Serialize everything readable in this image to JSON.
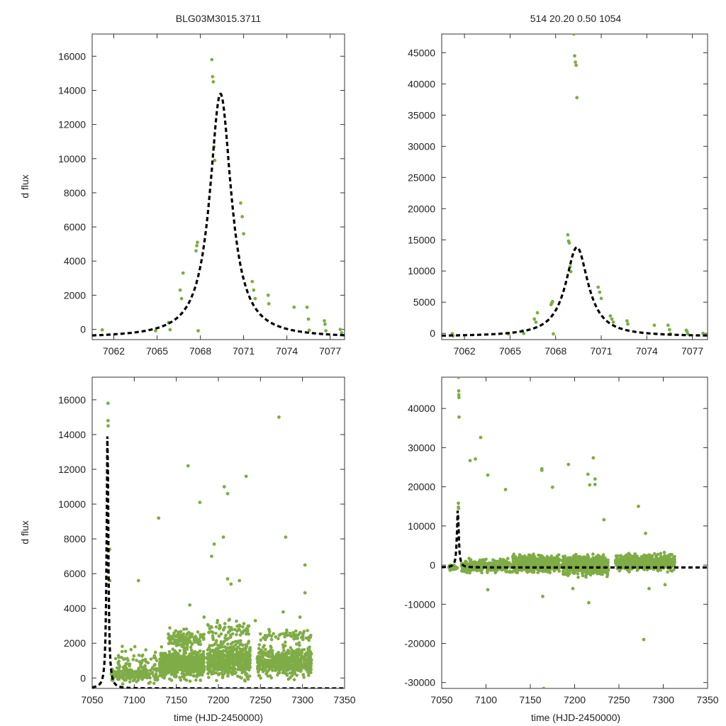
{
  "title_left": "BLG03M3015.3711",
  "title_right": "514  20.20  0.50  1054",
  "colors": {
    "data": "#7fac46",
    "model": "#000000",
    "axis": "#333333"
  },
  "chart_data": [
    {
      "type": "scatter",
      "name": "top-left",
      "title": "BLG03M3015.3711",
      "xlabel": "",
      "ylabel": "d flux",
      "xlim": [
        7060.5,
        7078
      ],
      "ylim": [
        -600,
        17300
      ],
      "xticks": [
        7062,
        7065,
        7068,
        7071,
        7074,
        7077
      ],
      "yticks": [
        0,
        2000,
        4000,
        6000,
        8000,
        10000,
        12000,
        14000,
        16000
      ],
      "points": [
        [
          7061.2,
          -30
        ],
        [
          7064.9,
          -80
        ],
        [
          7065.8,
          400
        ],
        [
          7065.9,
          -20
        ],
        [
          7066.6,
          2300
        ],
        [
          7066.7,
          1800
        ],
        [
          7066.8,
          3300
        ],
        [
          7067.7,
          4600
        ],
        [
          7067.75,
          4900
        ],
        [
          7067.8,
          5100
        ],
        [
          7067.85,
          -80
        ],
        [
          7068.8,
          15800
        ],
        [
          7068.85,
          14800
        ],
        [
          7068.9,
          14500
        ],
        [
          7068.95,
          10700
        ],
        [
          7069.0,
          9900
        ],
        [
          7070.8,
          7400
        ],
        [
          7070.9,
          6600
        ],
        [
          7071.0,
          5600
        ],
        [
          7071.6,
          2800
        ],
        [
          7071.7,
          2300
        ],
        [
          7071.8,
          1800
        ],
        [
          7072.7,
          2000
        ],
        [
          7072.75,
          1500
        ],
        [
          7074.5,
          1300
        ],
        [
          7075.4,
          1300
        ],
        [
          7075.5,
          600
        ],
        [
          7075.55,
          -50
        ],
        [
          7076.6,
          500
        ],
        [
          7076.65,
          300
        ],
        [
          7076.7,
          -80
        ],
        [
          7077.7,
          0
        ],
        [
          7077.8,
          -200
        ]
      ],
      "model": {
        "t0": 7069.4,
        "amplitude": 13800,
        "tE": 0.9,
        "baseline": -500
      }
    },
    {
      "type": "scatter",
      "name": "top-right",
      "title": "514  20.20  0.50  1054",
      "xlabel": "",
      "ylabel": "",
      "xlim": [
        7060.5,
        7078
      ],
      "ylim": [
        -1000,
        48000
      ],
      "xticks": [
        7062,
        7065,
        7068,
        7071,
        7074,
        7077
      ],
      "yticks": [
        0,
        5000,
        10000,
        15000,
        20000,
        25000,
        30000,
        35000,
        40000,
        45000
      ],
      "points": [
        [
          7061.2,
          -50
        ],
        [
          7061.25,
          -400
        ],
        [
          7064.9,
          -80
        ],
        [
          7065.8,
          400
        ],
        [
          7065.9,
          -20
        ],
        [
          7066.6,
          2300
        ],
        [
          7066.7,
          1800
        ],
        [
          7066.8,
          3300
        ],
        [
          7067.7,
          4600
        ],
        [
          7067.75,
          4900
        ],
        [
          7067.8,
          5100
        ],
        [
          7067.85,
          -80
        ],
        [
          7068.8,
          15800
        ],
        [
          7068.85,
          14800
        ],
        [
          7068.9,
          14500
        ],
        [
          7068.95,
          10700
        ],
        [
          7069.0,
          9900
        ],
        [
          7069.2,
          48000
        ],
        [
          7069.25,
          44500
        ],
        [
          7069.3,
          43500
        ],
        [
          7069.35,
          43000
        ],
        [
          7069.4,
          37800
        ],
        [
          7070.8,
          7400
        ],
        [
          7070.9,
          6600
        ],
        [
          7071.0,
          5600
        ],
        [
          7071.6,
          2800
        ],
        [
          7071.7,
          2300
        ],
        [
          7071.8,
          1800
        ],
        [
          7072.7,
          2000
        ],
        [
          7072.75,
          1500
        ],
        [
          7074.5,
          1300
        ],
        [
          7075.4,
          1300
        ],
        [
          7075.5,
          600
        ],
        [
          7075.55,
          -50
        ],
        [
          7076.6,
          500
        ],
        [
          7076.65,
          300
        ],
        [
          7076.7,
          -80
        ],
        [
          7077.7,
          0
        ],
        [
          7077.8,
          -200
        ]
      ],
      "model": {
        "t0": 7069.4,
        "amplitude": 13800,
        "tE": 0.9,
        "baseline": -500
      }
    },
    {
      "type": "scatter",
      "name": "bottom-left",
      "title": "",
      "xlabel": "time (HJD-2450000)",
      "ylabel": "d flux",
      "xlim": [
        7050,
        7350
      ],
      "ylim": [
        -600,
        17300
      ],
      "xticks": [
        7050,
        7100,
        7150,
        7200,
        7250,
        7300,
        7350
      ],
      "yticks": [
        0,
        2000,
        4000,
        6000,
        8000,
        10000,
        12000,
        14000,
        16000
      ],
      "points": [
        [
          7068.8,
          15800
        ],
        [
          7068.9,
          14800
        ],
        [
          7069.0,
          14500
        ],
        [
          7070.8,
          7400
        ],
        [
          7071.0,
          5600
        ],
        [
          7105,
          5600
        ],
        [
          7129,
          9200
        ],
        [
          7164,
          12200
        ],
        [
          7178,
          10100
        ],
        [
          7192,
          7000
        ],
        [
          7195,
          7700
        ],
        [
          7206,
          8100
        ],
        [
          7207,
          11000
        ],
        [
          7211,
          10600
        ],
        [
          7211,
          5700
        ],
        [
          7215,
          5400
        ],
        [
          7225,
          5600
        ],
        [
          7233,
          11600
        ],
        [
          7272,
          15000
        ],
        [
          7280,
          8100
        ],
        [
          7303,
          6500
        ],
        [
          7303,
          4900
        ],
        [
          7166,
          4200
        ],
        [
          7183,
          3500
        ],
        [
          7277,
          3800
        ],
        [
          7297,
          3500
        ],
        [
          7244,
          3300
        ]
      ],
      "clusters": [
        {
          "x": [
            7072,
            7128
          ],
          "y": [
            -400,
            800
          ],
          "n": 190,
          "seed": 1
        },
        {
          "x": [
            7078,
            7128
          ],
          "y": [
            -200,
            2000
          ],
          "n": 70,
          "seed": 2
        },
        {
          "x": [
            7130,
            7183
          ],
          "y": [
            -300,
            1900
          ],
          "n": 650,
          "seed": 3
        },
        {
          "x": [
            7140,
            7183
          ],
          "y": [
            1500,
            3000
          ],
          "n": 120,
          "seed": 4
        },
        {
          "x": [
            7186,
            7238
          ],
          "y": [
            -300,
            2400
          ],
          "n": 520,
          "seed": 5
        },
        {
          "x": [
            7186,
            7238
          ],
          "y": [
            2000,
            3600
          ],
          "n": 70,
          "seed": 6
        },
        {
          "x": [
            7246,
            7311
          ],
          "y": [
            -200,
            2100
          ],
          "n": 520,
          "seed": 7
        },
        {
          "x": [
            7250,
            7310
          ],
          "y": [
            1800,
            3000
          ],
          "n": 60,
          "seed": 8
        }
      ],
      "model": {
        "t0": 7068.2,
        "amplitude": 14300,
        "tE": 1.2,
        "baseline": -600
      }
    },
    {
      "type": "scatter",
      "name": "bottom-right",
      "title": "",
      "xlabel": "time (HJD-2450000)",
      "ylabel": "",
      "xlim": [
        7050,
        7350
      ],
      "ylim": [
        -31500,
        48000
      ],
      "xticks": [
        7050,
        7100,
        7150,
        7200,
        7250,
        7300,
        7350
      ],
      "yticks": [
        -30000,
        -20000,
        -10000,
        0,
        10000,
        20000,
        30000,
        40000
      ],
      "points": [
        [
          7069.0,
          48000
        ],
        [
          7069.2,
          44500
        ],
        [
          7069.3,
          43500
        ],
        [
          7069.5,
          42800
        ],
        [
          7069.6,
          37800
        ],
        [
          7068.8,
          15800
        ],
        [
          7068.9,
          14800
        ],
        [
          7069.0,
          14500
        ],
        [
          7082,
          26700
        ],
        [
          7088,
          27100
        ],
        [
          7094,
          32600
        ],
        [
          7102,
          23000
        ],
        [
          7122,
          19300
        ],
        [
          7163,
          24600
        ],
        [
          7163,
          24200
        ],
        [
          7175,
          19900
        ],
        [
          7193,
          25700
        ],
        [
          7215,
          23200
        ],
        [
          7217,
          20500
        ],
        [
          7221,
          27400
        ],
        [
          7223,
          22000
        ],
        [
          7223,
          20600
        ],
        [
          7233,
          11600
        ],
        [
          7272,
          15000
        ],
        [
          7280,
          8100
        ],
        [
          7278,
          -19000
        ],
        [
          7165,
          -31500
        ],
        [
          7216,
          -9600
        ],
        [
          7102,
          -6300
        ],
        [
          7164,
          -8000
        ],
        [
          7198,
          -6000
        ],
        [
          7302,
          -5000
        ],
        [
          7284,
          -6000
        ]
      ],
      "clusters": [
        {
          "x": [
            7058,
            7068
          ],
          "y": [
            -1500,
            300
          ],
          "n": 40,
          "seed": 11
        },
        {
          "x": [
            7072,
            7128
          ],
          "y": [
            -2500,
            2000
          ],
          "n": 340,
          "seed": 12
        },
        {
          "x": [
            7130,
            7183
          ],
          "y": [
            -2500,
            3200
          ],
          "n": 650,
          "seed": 13
        },
        {
          "x": [
            7186,
            7238
          ],
          "y": [
            -3500,
            3500
          ],
          "n": 600,
          "seed": 14
        },
        {
          "x": [
            7246,
            7313
          ],
          "y": [
            -2000,
            3500
          ],
          "n": 560,
          "seed": 15
        }
      ],
      "model": {
        "t0": 7068.2,
        "amplitude": 14300,
        "tE": 1.2,
        "baseline": -600
      }
    }
  ]
}
